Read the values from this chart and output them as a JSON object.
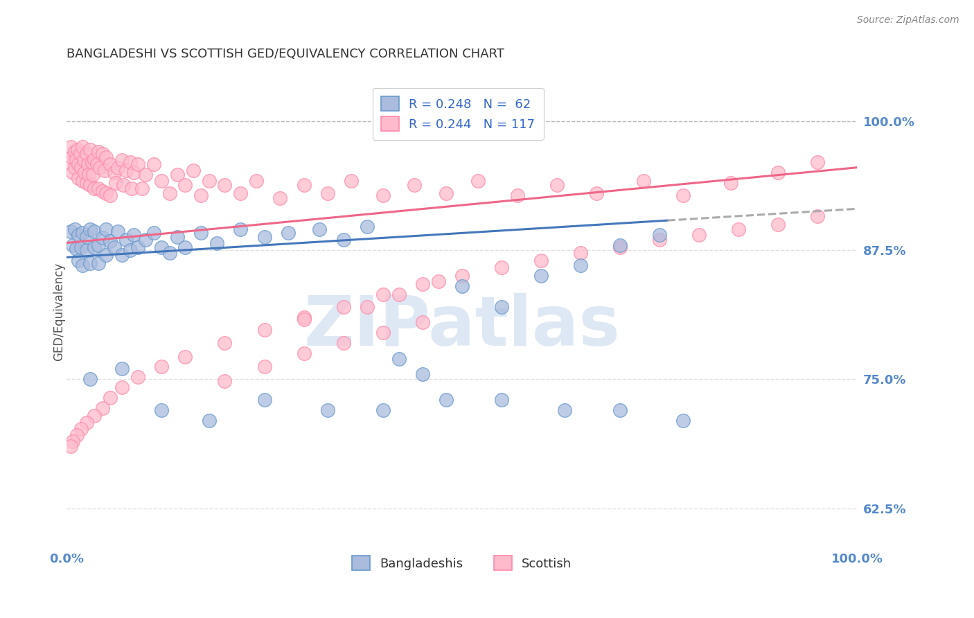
{
  "title": "BANGLADESHI VS SCOTTISH GED/EQUIVALENCY CORRELATION CHART",
  "source_text": "Source: ZipAtlas.com",
  "ylabel": "GED/Equivalency",
  "yticks": [
    0.625,
    0.75,
    0.875,
    1.0
  ],
  "ytick_labels": [
    "62.5%",
    "75.0%",
    "87.5%",
    "100.0%"
  ],
  "xlim": [
    0.0,
    1.0
  ],
  "ylim": [
    0.585,
    1.045
  ],
  "blue_R": 0.248,
  "blue_N": 62,
  "pink_R": 0.244,
  "pink_N": 117,
  "blue_fill": "#AABBDD",
  "blue_edge": "#6699CC",
  "pink_fill": "#FFBBCC",
  "pink_edge": "#FF88AA",
  "trend_blue": "#4477BB",
  "trend_pink": "#EE6688",
  "dashed_color": "#AAAAAA",
  "legend_label_blue": "Bangladeshis",
  "legend_label_pink": "Scottish",
  "watermark": "ZIPatlas",
  "watermark_color_r": 0.78,
  "watermark_color_g": 0.85,
  "watermark_color_b": 0.93,
  "background_color": "#FFFFFF",
  "title_color": "#333333",
  "axis_label_color": "#5588CC",
  "grid_color": "#DDDDDD",
  "blue_trend_start_y": 0.868,
  "blue_trend_end_y": 0.915,
  "pink_trend_start_y": 0.882,
  "pink_trend_end_y": 0.955,
  "blue_scatter_x": [
    0.005,
    0.008,
    0.01,
    0.012,
    0.015,
    0.015,
    0.018,
    0.02,
    0.02,
    0.025,
    0.025,
    0.03,
    0.03,
    0.035,
    0.035,
    0.04,
    0.04,
    0.045,
    0.05,
    0.05,
    0.055,
    0.06,
    0.065,
    0.07,
    0.075,
    0.08,
    0.085,
    0.09,
    0.1,
    0.11,
    0.12,
    0.13,
    0.14,
    0.15,
    0.17,
    0.19,
    0.22,
    0.25,
    0.28,
    0.32,
    0.35,
    0.38,
    0.42,
    0.45,
    0.5,
    0.55,
    0.6,
    0.65,
    0.7,
    0.75,
    0.03,
    0.07,
    0.12,
    0.18,
    0.25,
    0.33,
    0.4,
    0.48,
    0.55,
    0.63,
    0.7,
    0.78
  ],
  "blue_scatter_y": [
    0.893,
    0.88,
    0.895,
    0.876,
    0.89,
    0.865,
    0.878,
    0.892,
    0.86,
    0.875,
    0.888,
    0.895,
    0.862,
    0.878,
    0.893,
    0.88,
    0.862,
    0.887,
    0.895,
    0.87,
    0.884,
    0.878,
    0.893,
    0.87,
    0.885,
    0.875,
    0.89,
    0.878,
    0.885,
    0.892,
    0.878,
    0.872,
    0.888,
    0.878,
    0.892,
    0.882,
    0.895,
    0.888,
    0.892,
    0.895,
    0.885,
    0.898,
    0.77,
    0.755,
    0.84,
    0.82,
    0.85,
    0.86,
    0.88,
    0.89,
    0.75,
    0.76,
    0.72,
    0.71,
    0.73,
    0.72,
    0.72,
    0.73,
    0.73,
    0.72,
    0.72,
    0.71
  ],
  "pink_scatter_x": [
    0.003,
    0.005,
    0.007,
    0.008,
    0.01,
    0.01,
    0.012,
    0.014,
    0.015,
    0.015,
    0.017,
    0.018,
    0.02,
    0.02,
    0.022,
    0.023,
    0.025,
    0.025,
    0.027,
    0.028,
    0.03,
    0.03,
    0.032,
    0.033,
    0.035,
    0.035,
    0.038,
    0.04,
    0.04,
    0.042,
    0.045,
    0.045,
    0.048,
    0.05,
    0.05,
    0.055,
    0.055,
    0.06,
    0.062,
    0.065,
    0.07,
    0.072,
    0.075,
    0.08,
    0.082,
    0.085,
    0.09,
    0.095,
    0.1,
    0.11,
    0.12,
    0.13,
    0.14,
    0.15,
    0.16,
    0.17,
    0.18,
    0.2,
    0.22,
    0.24,
    0.27,
    0.3,
    0.33,
    0.36,
    0.4,
    0.44,
    0.48,
    0.52,
    0.57,
    0.62,
    0.67,
    0.73,
    0.78,
    0.84,
    0.9,
    0.95,
    0.38,
    0.42,
    0.47,
    0.3,
    0.25,
    0.2,
    0.15,
    0.12,
    0.09,
    0.07,
    0.055,
    0.045,
    0.035,
    0.025,
    0.018,
    0.013,
    0.008,
    0.005,
    0.3,
    0.35,
    0.4,
    0.45,
    0.5,
    0.55,
    0.6,
    0.65,
    0.7,
    0.75,
    0.8,
    0.85,
    0.9,
    0.95,
    0.2,
    0.25,
    0.3,
    0.35,
    0.4,
    0.45
  ],
  "pink_scatter_y": [
    0.96,
    0.975,
    0.965,
    0.95,
    0.97,
    0.955,
    0.963,
    0.972,
    0.958,
    0.945,
    0.968,
    0.955,
    0.975,
    0.942,
    0.962,
    0.95,
    0.968,
    0.94,
    0.958,
    0.948,
    0.972,
    0.938,
    0.96,
    0.948,
    0.963,
    0.935,
    0.958,
    0.97,
    0.935,
    0.955,
    0.968,
    0.932,
    0.952,
    0.965,
    0.93,
    0.958,
    0.928,
    0.95,
    0.94,
    0.955,
    0.962,
    0.938,
    0.952,
    0.96,
    0.935,
    0.95,
    0.958,
    0.935,
    0.948,
    0.958,
    0.942,
    0.93,
    0.948,
    0.938,
    0.952,
    0.928,
    0.942,
    0.938,
    0.93,
    0.942,
    0.925,
    0.938,
    0.93,
    0.942,
    0.928,
    0.938,
    0.93,
    0.942,
    0.928,
    0.938,
    0.93,
    0.942,
    0.928,
    0.94,
    0.95,
    0.96,
    0.82,
    0.832,
    0.845,
    0.81,
    0.798,
    0.785,
    0.772,
    0.762,
    0.752,
    0.742,
    0.732,
    0.722,
    0.715,
    0.708,
    0.702,
    0.696,
    0.69,
    0.685,
    0.808,
    0.82,
    0.832,
    0.842,
    0.85,
    0.858,
    0.865,
    0.872,
    0.878,
    0.885,
    0.89,
    0.895,
    0.9,
    0.908,
    0.748,
    0.762,
    0.775,
    0.785,
    0.795,
    0.805
  ]
}
